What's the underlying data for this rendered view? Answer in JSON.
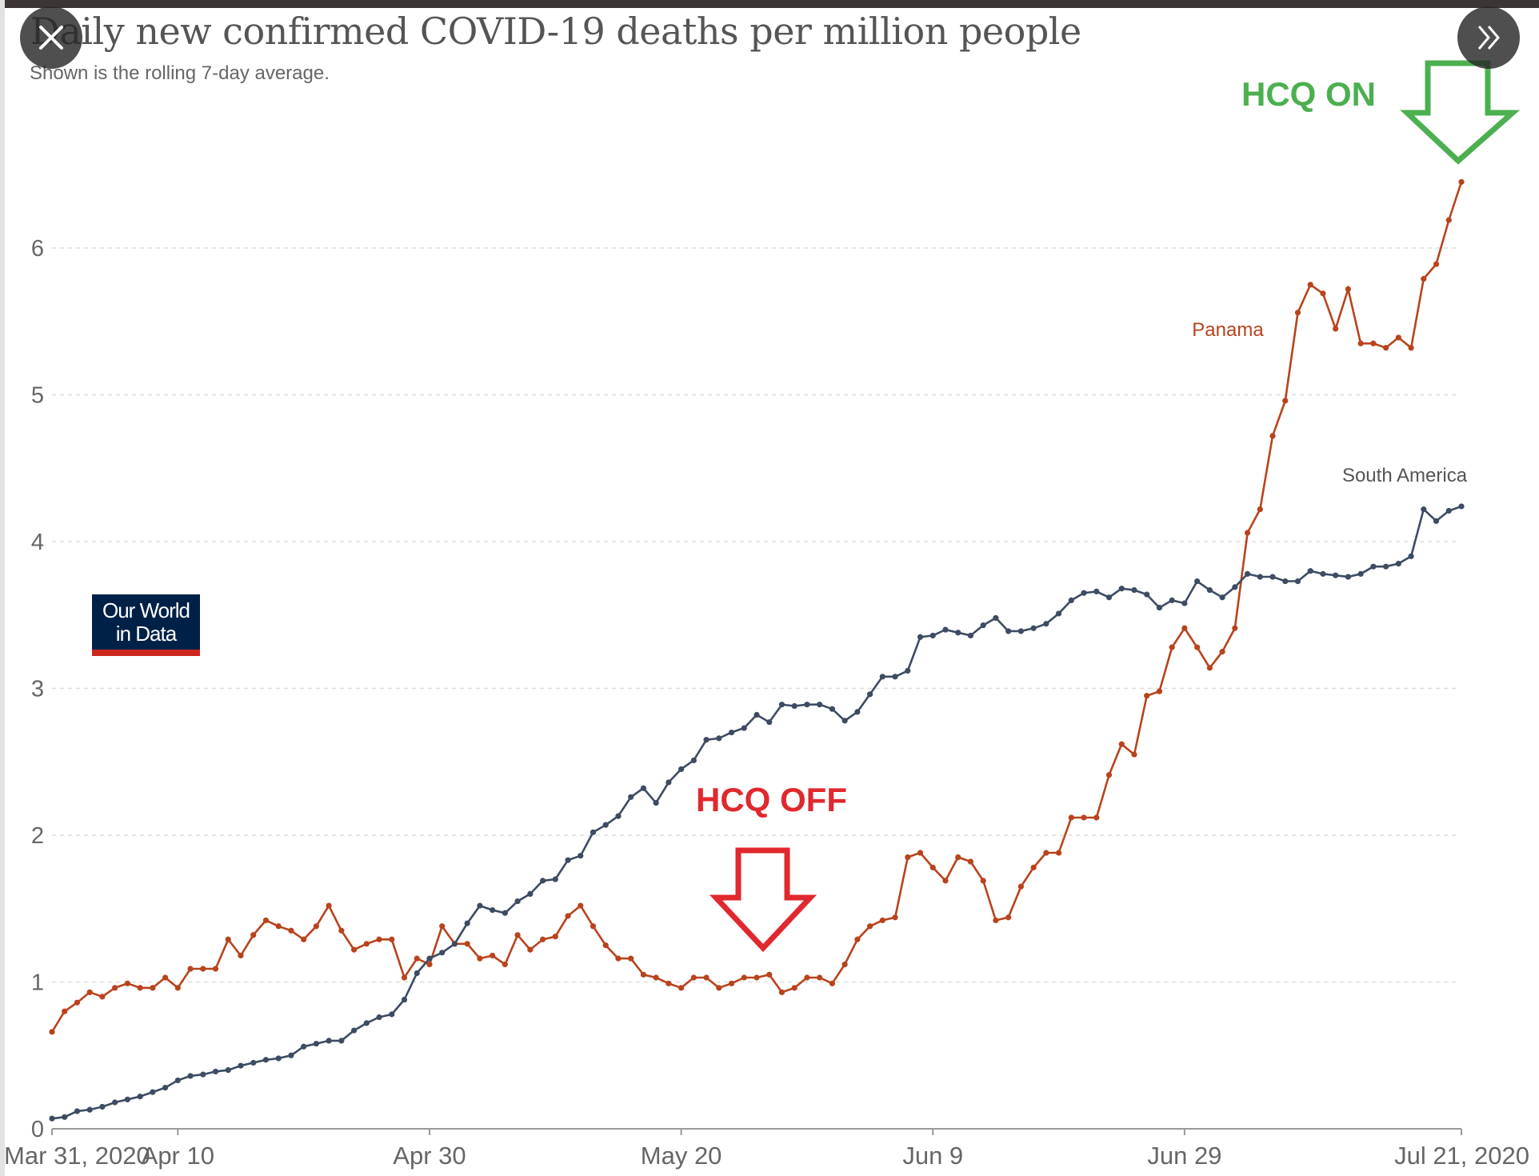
{
  "header": {
    "title": "Daily new confirmed COVID-19 deaths per million people",
    "subtitle": "Shown is the rolling 7-day average."
  },
  "controls": {
    "close_icon": "close-icon",
    "next_icon": "double-chevron-right-icon"
  },
  "logo": {
    "line1": "Our World",
    "line2": "in Data"
  },
  "annotations": {
    "hcq_on": "HCQ ON",
    "hcq_off": "HCQ OFF",
    "hcq_on_color": "#4caf50",
    "hcq_off_color": "#e0282e"
  },
  "chart_data": {
    "type": "line",
    "title": "Daily new confirmed COVID-19 deaths per million people",
    "subtitle": "Shown is the rolling 7-day average.",
    "x_start": "2020-03-31",
    "x_end": "2020-07-21",
    "x_step": "1 day",
    "x_ticks": [
      "Mar 31, 2020",
      "Apr 10",
      "Apr 30",
      "May 20",
      "Jun 9",
      "Jun 29",
      "Jul 21, 2020"
    ],
    "x_tick_dates": [
      "2020-03-31",
      "2020-04-10",
      "2020-04-30",
      "2020-05-20",
      "2020-06-09",
      "2020-06-29",
      "2020-07-21"
    ],
    "y_ticks": [
      0,
      1,
      2,
      3,
      4,
      5,
      6
    ],
    "ylim": [
      0,
      6.6
    ],
    "grid": "horizontal dashed",
    "legend": "inline labels at line ends",
    "series": [
      {
        "name": "Panama",
        "color": "#b8431c",
        "values": [
          0.66,
          0.8,
          0.86,
          0.93,
          0.9,
          0.96,
          0.99,
          0.96,
          0.96,
          1.03,
          0.96,
          1.09,
          1.09,
          1.09,
          1.29,
          1.18,
          1.32,
          1.42,
          1.38,
          1.35,
          1.29,
          1.38,
          1.52,
          1.35,
          1.22,
          1.26,
          1.29,
          1.29,
          1.03,
          1.16,
          1.12,
          1.38,
          1.26,
          1.26,
          1.16,
          1.18,
          1.12,
          1.32,
          1.22,
          1.29,
          1.31,
          1.45,
          1.52,
          1.38,
          1.25,
          1.16,
          1.16,
          1.05,
          1.03,
          0.99,
          0.96,
          1.03,
          1.03,
          0.96,
          0.99,
          1.03,
          1.03,
          1.05,
          0.93,
          0.96,
          1.03,
          1.03,
          0.99,
          1.12,
          1.29,
          1.38,
          1.42,
          1.44,
          1.85,
          1.88,
          1.78,
          1.69,
          1.85,
          1.82,
          1.69,
          1.42,
          1.44,
          1.65,
          1.78,
          1.88,
          1.88,
          2.12,
          2.12,
          2.12,
          2.41,
          2.62,
          2.55,
          2.95,
          2.98,
          3.28,
          3.41,
          3.28,
          3.14,
          3.25,
          3.41,
          4.06,
          4.22,
          4.72,
          4.96,
          5.56,
          5.75,
          5.69,
          5.45,
          5.72,
          5.35,
          5.35,
          5.32,
          5.39,
          5.32,
          5.79,
          5.89,
          6.19,
          6.45
        ]
      },
      {
        "name": "South America",
        "color": "#3d4b63",
        "values": [
          0.07,
          0.08,
          0.12,
          0.13,
          0.15,
          0.18,
          0.2,
          0.22,
          0.25,
          0.28,
          0.33,
          0.36,
          0.37,
          0.39,
          0.4,
          0.43,
          0.45,
          0.47,
          0.48,
          0.5,
          0.56,
          0.58,
          0.6,
          0.6,
          0.67,
          0.72,
          0.76,
          0.78,
          0.88,
          1.06,
          1.16,
          1.2,
          1.26,
          1.4,
          1.52,
          1.49,
          1.47,
          1.55,
          1.6,
          1.69,
          1.7,
          1.83,
          1.86,
          2.02,
          2.07,
          2.13,
          2.26,
          2.32,
          2.22,
          2.36,
          2.45,
          2.51,
          2.65,
          2.66,
          2.7,
          2.73,
          2.82,
          2.77,
          2.89,
          2.88,
          2.89,
          2.89,
          2.86,
          2.78,
          2.84,
          2.96,
          3.08,
          3.08,
          3.12,
          3.35,
          3.36,
          3.4,
          3.38,
          3.36,
          3.43,
          3.48,
          3.39,
          3.39,
          3.41,
          3.44,
          3.51,
          3.6,
          3.65,
          3.66,
          3.62,
          3.68,
          3.67,
          3.64,
          3.55,
          3.6,
          3.58,
          3.73,
          3.67,
          3.62,
          3.69,
          3.78,
          3.76,
          3.76,
          3.73,
          3.73,
          3.8,
          3.78,
          3.77,
          3.76,
          3.78,
          3.83,
          3.83,
          3.85,
          3.9,
          4.22,
          4.14,
          4.21,
          4.24
        ]
      }
    ]
  }
}
